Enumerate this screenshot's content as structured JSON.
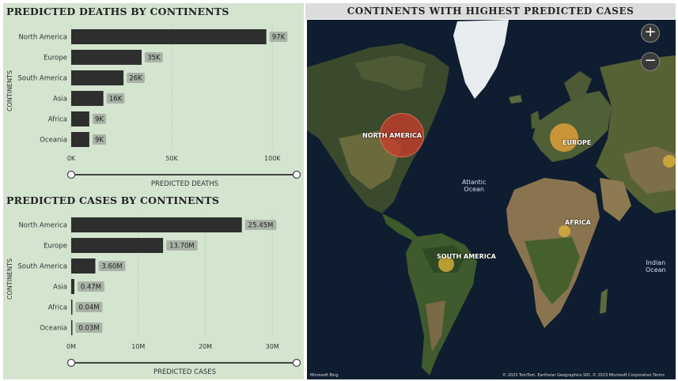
{
  "deaths_panel": {
    "title": "PREDICTED DEATHS BY CONTINENTS",
    "chart_data": {
      "type": "bar",
      "orientation": "horizontal",
      "categories": [
        "North America",
        "Europe",
        "South America",
        "Asia",
        "Africa",
        "Oceania"
      ],
      "values": [
        97000,
        35000,
        26000,
        16000,
        9000,
        9000
      ],
      "data_labels": [
        "97K",
        "35K",
        "26K",
        "16K",
        "9K",
        "9K"
      ],
      "ylabel": "CONTINENTS",
      "xlabel": "PREDICTED DEATHS",
      "xticks": [
        "0K",
        "50K",
        "100K"
      ],
      "xtick_values": [
        0,
        50000,
        100000
      ],
      "xlim": [
        0,
        105000
      ],
      "grid": true,
      "bar_color": "#2e2e2e"
    }
  },
  "cases_panel": {
    "title": "PREDICTED CASES BY CONTINENTS",
    "chart_data": {
      "type": "bar",
      "orientation": "horizontal",
      "categories": [
        "North America",
        "Europe",
        "South America",
        "Asia",
        "Africa",
        "Oceania"
      ],
      "values": [
        25.45,
        13.7,
        3.6,
        0.47,
        0.04,
        0.03
      ],
      "data_labels": [
        "25.45M",
        "13.70M",
        "3.60M",
        "0.47M",
        "0.04M",
        "0.03M"
      ],
      "ylabel": "CONTINENTS",
      "xlabel": "PREDICTED CASES",
      "xticks": [
        "0M",
        "10M",
        "20M",
        "30M"
      ],
      "xtick_values": [
        0,
        10,
        20,
        30
      ],
      "xlim": [
        0,
        31.5
      ],
      "grid": true,
      "bar_color": "#2e2e2e"
    }
  },
  "map_panel": {
    "title": "CONTINENTS WITH HIGHEST PREDICTED CASES",
    "zoom_in": "+",
    "zoom_out": "−",
    "labels": {
      "north_america": "NORTH AMERICA",
      "europe": "EUROPE",
      "africa": "AFRICA",
      "south_america": "SOUTH AMERICA"
    },
    "oceans": {
      "atlantic": "Atlantic\nOcean",
      "indian": "Indian\nOcean"
    },
    "attribution_left": "Microsoft Bing",
    "attribution_right": "© 2023 TomTom, Earthstar Geographics SIO, © 2023 Microsoft Corporation  Terms",
    "colors": {
      "north_america": "#c0392b",
      "europe": "#e8a33a",
      "south_america": "#d9b23a",
      "africa": "#d9b23a",
      "asia": "#d9b23a"
    }
  }
}
